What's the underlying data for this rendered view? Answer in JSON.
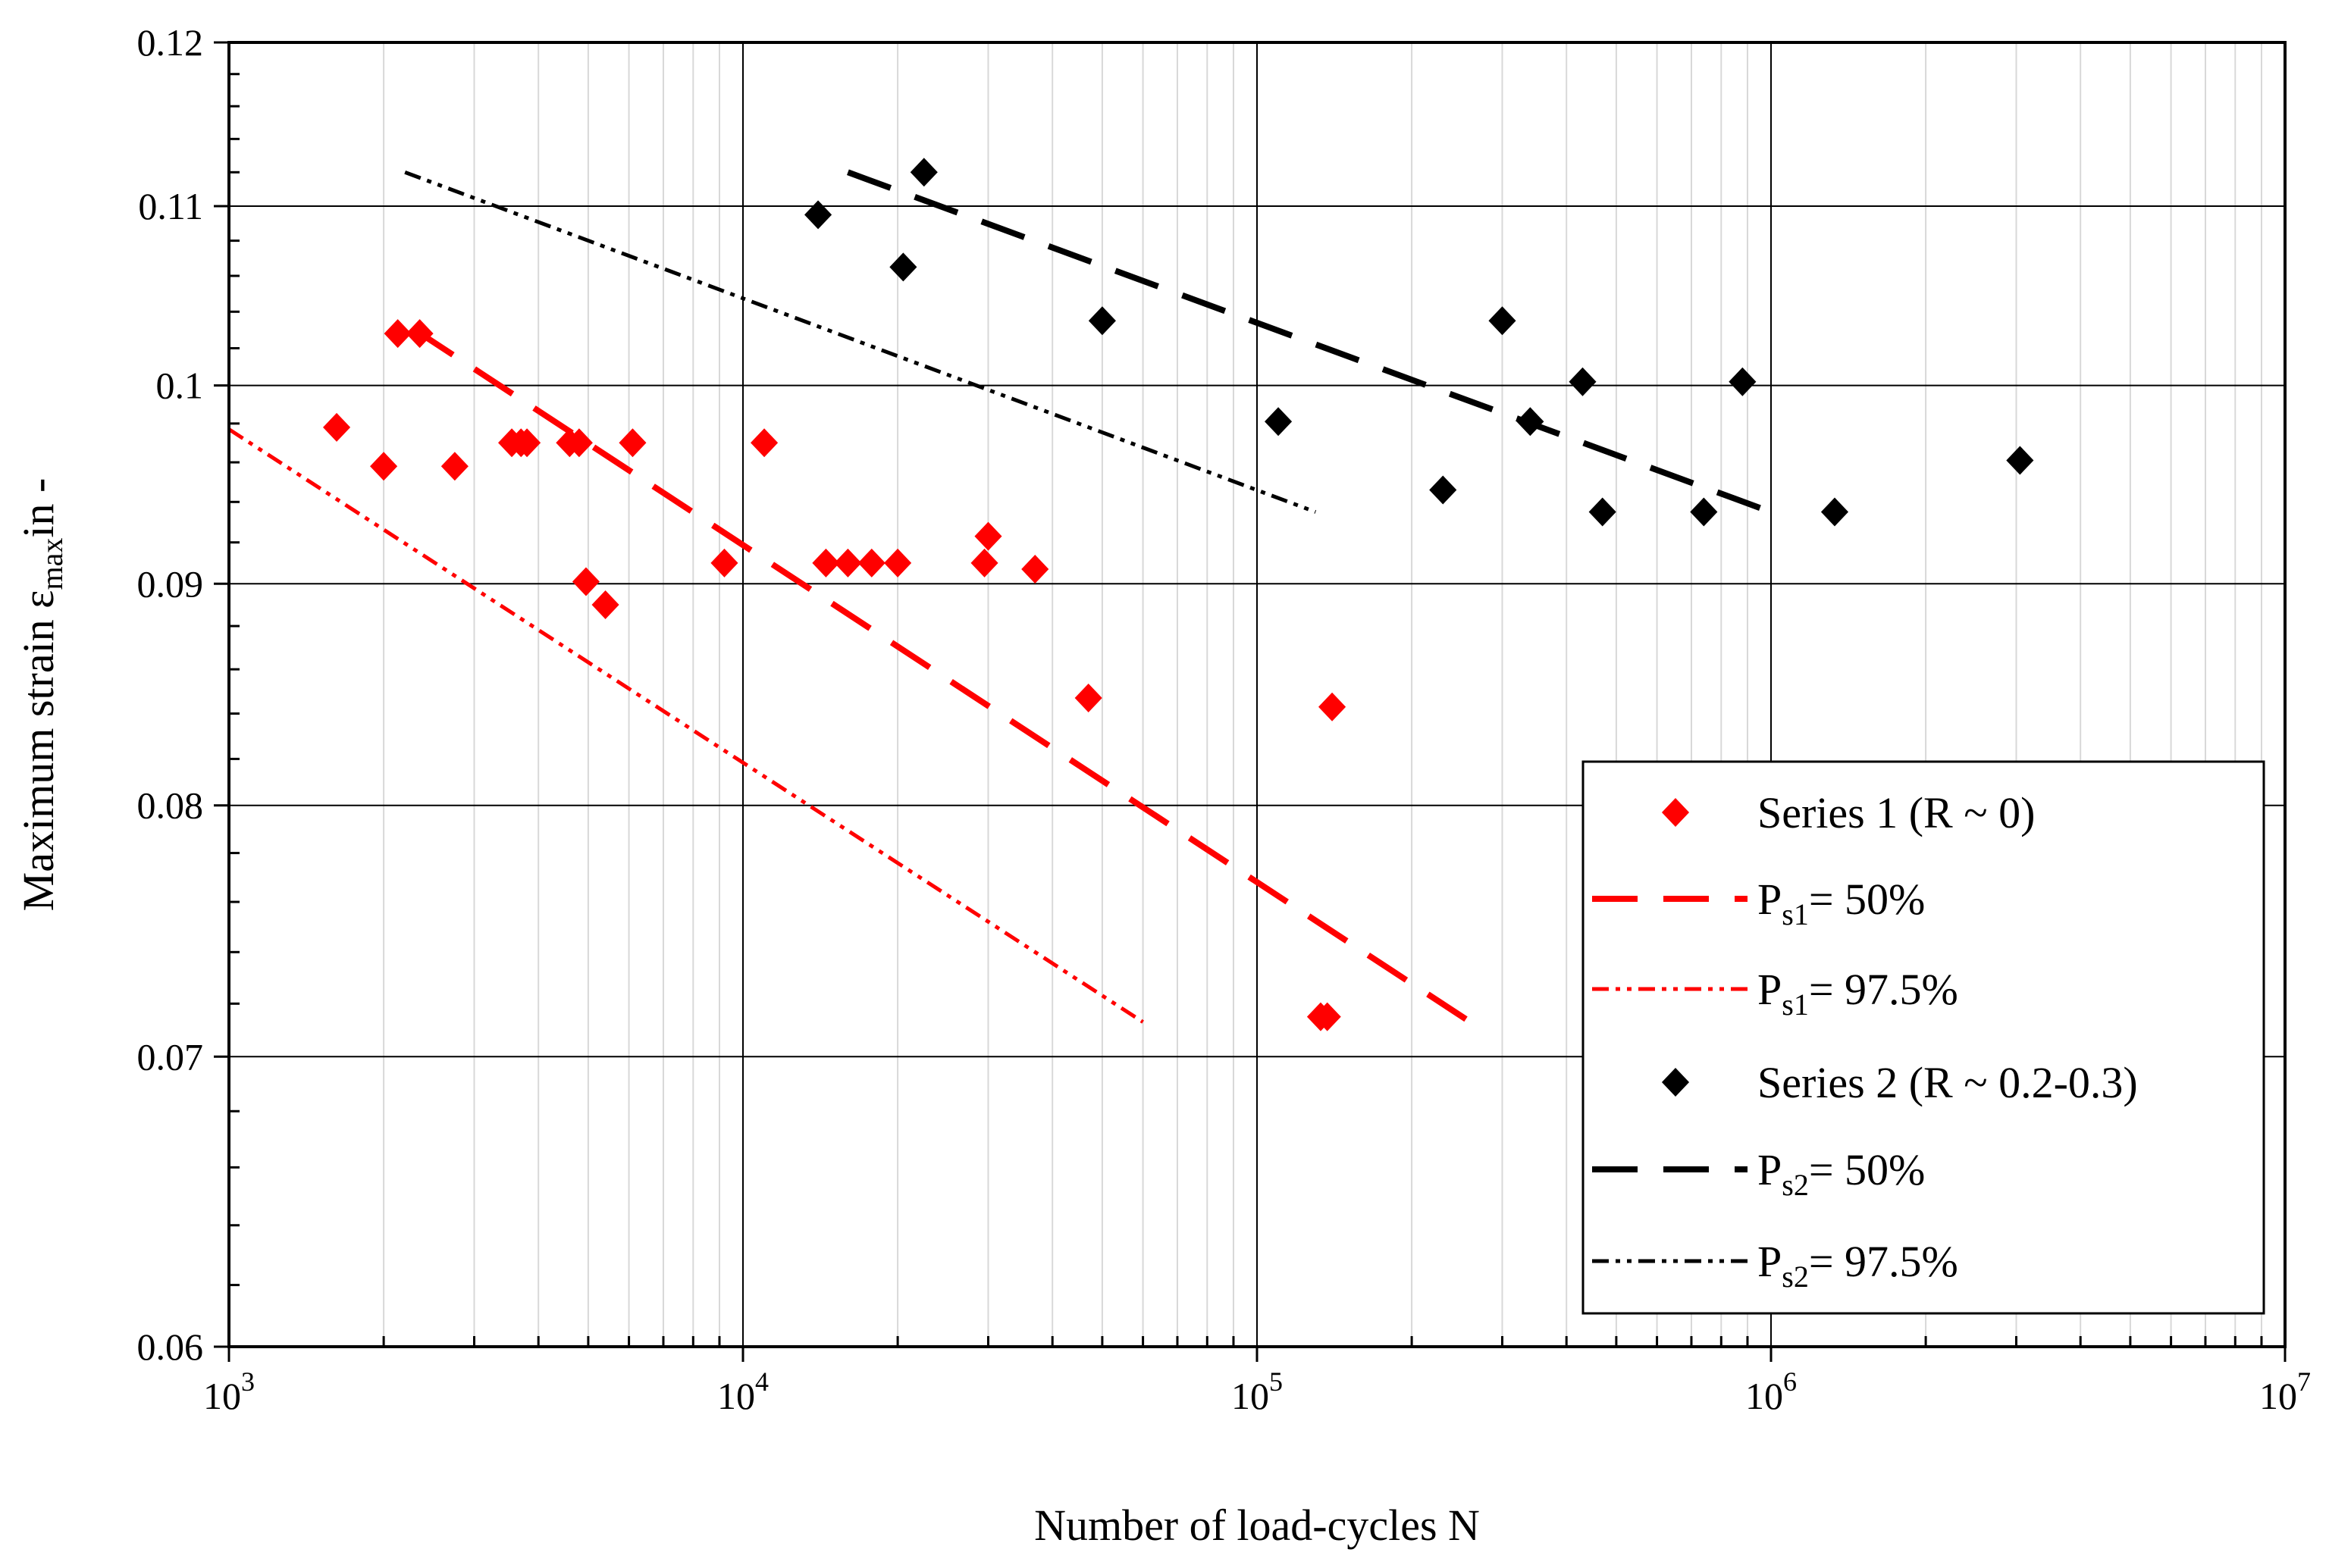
{
  "chart_data": {
    "type": "scatter",
    "title": "",
    "xlabel": "Number of load-cycles N",
    "ylabel": {
      "main": "Maximum strain ε",
      "sub": "max",
      "suffix": "in -"
    },
    "xscale": "log",
    "yscale": "log",
    "xlim": [
      1000,
      10000000
    ],
    "ylim": [
      0.06,
      0.12
    ],
    "x_ticks": [
      {
        "value": 1000,
        "base": "10",
        "exp": "3"
      },
      {
        "value": 10000,
        "base": "10",
        "exp": "4"
      },
      {
        "value": 100000,
        "base": "10",
        "exp": "5"
      },
      {
        "value": 1000000,
        "base": "10",
        "exp": "6"
      },
      {
        "value": 10000000,
        "base": "10",
        "exp": "7"
      }
    ],
    "y_ticks": [
      {
        "value": 0.06,
        "label": "0.06"
      },
      {
        "value": 0.07,
        "label": "0.07"
      },
      {
        "value": 0.08,
        "label": "0.08"
      },
      {
        "value": 0.09,
        "label": "0.09"
      },
      {
        "value": 0.1,
        "label": "0.1"
      },
      {
        "value": 0.11,
        "label": "0.11"
      },
      {
        "value": 0.12,
        "label": "0.12"
      }
    ],
    "grid": true,
    "legend_position": "bottom-right",
    "series": [
      {
        "name": "Series 1 (R ~ 0)",
        "kind": "points",
        "color": "#ff0000",
        "marker": "diamond",
        "points": [
          [
            1620,
            0.0978
          ],
          [
            2000,
            0.0958
          ],
          [
            2130,
            0.1028
          ],
          [
            2350,
            0.1028
          ],
          [
            2750,
            0.0958
          ],
          [
            3550,
            0.097
          ],
          [
            3700,
            0.097
          ],
          [
            3800,
            0.097
          ],
          [
            4600,
            0.097
          ],
          [
            4800,
            0.097
          ],
          [
            4950,
            0.0901
          ],
          [
            5400,
            0.089
          ],
          [
            6100,
            0.097
          ],
          [
            9200,
            0.091
          ],
          [
            11000,
            0.097
          ],
          [
            14500,
            0.091
          ],
          [
            16000,
            0.091
          ],
          [
            17800,
            0.091
          ],
          [
            20000,
            0.091
          ],
          [
            29500,
            0.091
          ],
          [
            30000,
            0.0923
          ],
          [
            37000,
            0.0907
          ],
          [
            47000,
            0.0847
          ],
          [
            133000,
            0.0715
          ],
          [
            137000,
            0.0715
          ],
          [
            140000,
            0.0843
          ]
        ]
      },
      {
        "name": "P",
        "sub": "s1",
        "suffix": "= 50%",
        "kind": "line",
        "color": "#ff0000",
        "dash": "long-dash",
        "points": [
          [
            2300,
            0.103
          ],
          [
            260000,
            0.0713
          ]
        ]
      },
      {
        "name": "P",
        "sub": "s1",
        "suffix": "= 97.5%",
        "kind": "line",
        "color": "#ff0000",
        "dash": "dash-dot-dot",
        "points": [
          [
            1000,
            0.0977
          ],
          [
            60000,
            0.0713
          ]
        ]
      },
      {
        "name": "Series 2 (R ~ 0.2-0.3)",
        "kind": "points",
        "color": "#000000",
        "marker": "diamond",
        "points": [
          [
            14000,
            0.1095
          ],
          [
            20500,
            0.1065
          ],
          [
            22500,
            0.112
          ],
          [
            50000,
            0.1035
          ],
          [
            110000,
            0.0981
          ],
          [
            230000,
            0.0946
          ],
          [
            300000,
            0.1035
          ],
          [
            340000,
            0.0981
          ],
          [
            430000,
            0.1002
          ],
          [
            470000,
            0.0935
          ],
          [
            740000,
            0.0935
          ],
          [
            880000,
            0.1002
          ],
          [
            1330000,
            0.0935
          ],
          [
            3050000,
            0.0961
          ]
        ]
      },
      {
        "name": "P",
        "sub": "s2",
        "suffix": "= 50%",
        "kind": "line",
        "color": "#000000",
        "dash": "long-dash",
        "points": [
          [
            16000,
            0.112
          ],
          [
            1000000,
            0.0935
          ]
        ]
      },
      {
        "name": "P",
        "sub": "s2",
        "suffix": "= 97.5%",
        "kind": "line",
        "color": "#000000",
        "dash": "dash-dot-dot",
        "points": [
          [
            2200,
            0.112
          ],
          [
            130000,
            0.0935
          ]
        ]
      }
    ]
  }
}
